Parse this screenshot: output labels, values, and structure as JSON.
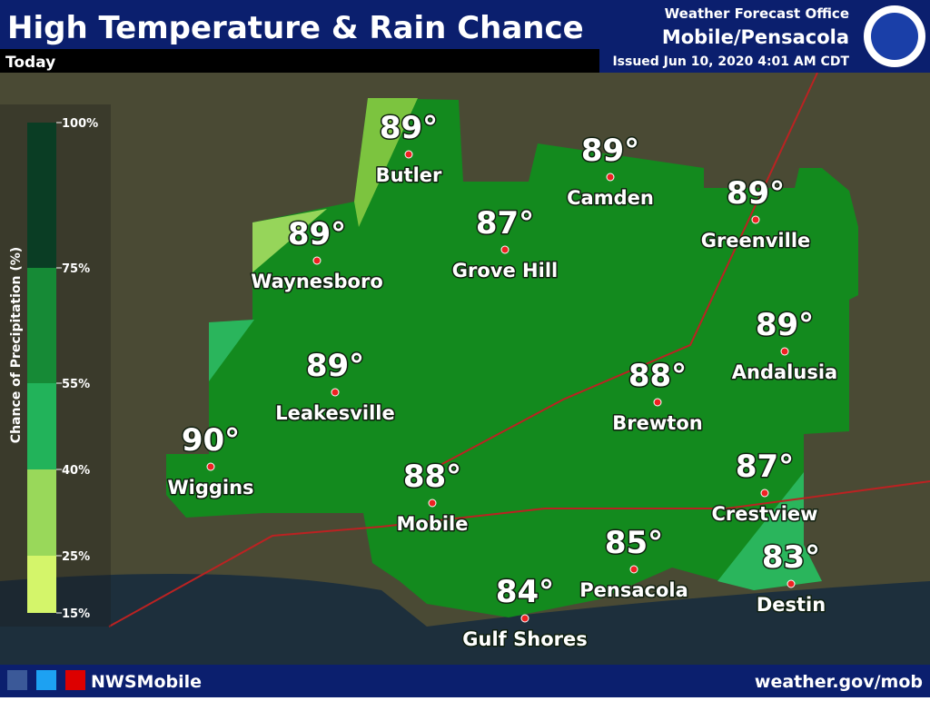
{
  "header": {
    "title": "High Temperature & Rain Chance",
    "subtitle": "Today",
    "office": "Weather Forecast Office",
    "location": "Mobile/Pensacola",
    "issued": "Issued Jun 10, 2020 4:01 AM CDT"
  },
  "legend": {
    "title": "Chance of Precipitation (%)",
    "labels": [
      "100%",
      "75%",
      "55%",
      "40%",
      "25%",
      "15%"
    ]
  },
  "cities": [
    {
      "name": "Butler",
      "temp": "89°"
    },
    {
      "name": "Camden",
      "temp": "89°"
    },
    {
      "name": "Grove Hill",
      "temp": "87°"
    },
    {
      "name": "Greenville",
      "temp": "89°"
    },
    {
      "name": "Waynesboro",
      "temp": "89°"
    },
    {
      "name": "Andalusia",
      "temp": "89°"
    },
    {
      "name": "Leakesville",
      "temp": "89°"
    },
    {
      "name": "Brewton",
      "temp": "88°"
    },
    {
      "name": "Wiggins",
      "temp": "90°"
    },
    {
      "name": "Mobile",
      "temp": "88°"
    },
    {
      "name": "Crestview",
      "temp": "87°"
    },
    {
      "name": "Pensacola",
      "temp": "85°"
    },
    {
      "name": "Destin",
      "temp": "83°"
    },
    {
      "name": "Gulf Shores",
      "temp": "84°"
    }
  ],
  "footer": {
    "handle": "NWSMobile",
    "url": "weather.gov/mob"
  }
}
